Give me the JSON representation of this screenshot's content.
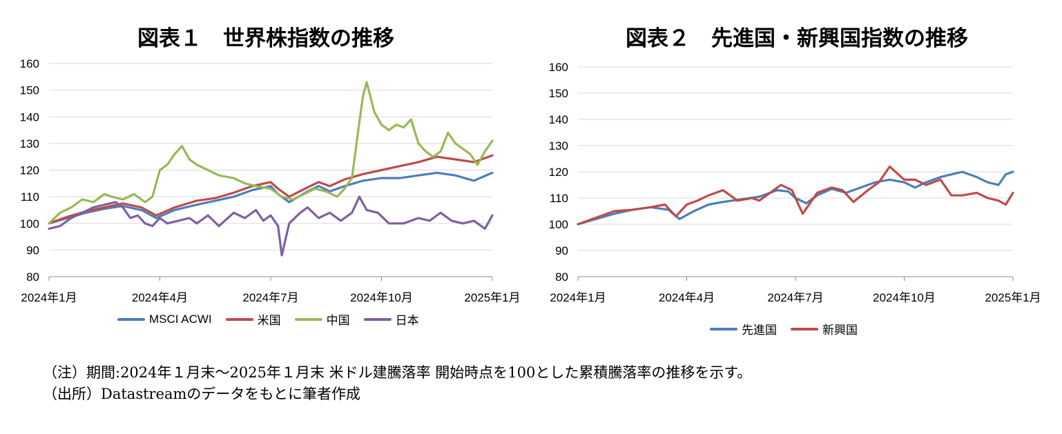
{
  "footnote_note": "（注）期間:2024年１月末〜2025年１月末 米ドル建騰落率 開始時点を100とした累積騰落率の推移を示す。",
  "footnote_source": "（出所）Datastreamのデータをもとに筆者作成",
  "chart_data": [
    {
      "type": "line",
      "title": "図表１　世界株指数の推移",
      "ylim": [
        80,
        160
      ],
      "yticks": [
        "80",
        "90",
        "100",
        "110",
        "120",
        "130",
        "140",
        "150",
        "160"
      ],
      "xlim": [
        0,
        12
      ],
      "xticks": [
        {
          "x": 0,
          "label": "2024年1月"
        },
        {
          "x": 3,
          "label": "2024年4月"
        },
        {
          "x": 6,
          "label": "2024年7月"
        },
        {
          "x": 9,
          "label": "2024年10月"
        },
        {
          "x": 12,
          "label": "2025年1月"
        }
      ],
      "grid": true,
      "legend": "bottom",
      "series": [
        {
          "name": "MSCI ACWI",
          "color": "#4a7ebb",
          "x": [
            0,
            0.5,
            1,
            1.5,
            2,
            2.5,
            2.9,
            3.4,
            4,
            4.5,
            5,
            5.5,
            6,
            6.2,
            6.5,
            7,
            7.3,
            7.6,
            8,
            8.5,
            9,
            9.5,
            10,
            10.5,
            11,
            11.5,
            12
          ],
          "y": [
            100,
            102,
            104,
            105.5,
            106.5,
            105,
            102,
            105,
            107,
            108.5,
            110,
            112.5,
            114,
            111,
            108,
            112,
            114,
            112,
            114,
            116,
            117,
            117,
            118,
            119,
            118,
            116,
            119
          ]
        },
        {
          "name": "米国",
          "color": "#be4b48",
          "x": [
            0,
            0.5,
            1,
            1.5,
            2,
            2.5,
            2.9,
            3.4,
            4,
            4.5,
            5,
            5.5,
            6,
            6.2,
            6.5,
            7,
            7.3,
            7.6,
            8,
            8.5,
            9,
            9.5,
            10,
            10.5,
            11,
            11.5,
            12
          ],
          "y": [
            100,
            102.5,
            104.5,
            106,
            107.5,
            106,
            103,
            106,
            108.5,
            109.5,
            111.5,
            114,
            115.5,
            113,
            110,
            113.5,
            115.5,
            114,
            116.5,
            118.5,
            120,
            121.5,
            123,
            125,
            124,
            123,
            125.5
          ]
        },
        {
          "name": "中国",
          "color": "#98b954",
          "x": [
            0,
            0.3,
            0.6,
            0.9,
            1.2,
            1.5,
            1.7,
            2,
            2.3,
            2.6,
            2.8,
            3,
            3.2,
            3.4,
            3.6,
            3.8,
            4,
            4.3,
            4.6,
            5,
            5.3,
            5.6,
            6,
            6.3,
            6.6,
            6.9,
            7.2,
            7.5,
            7.8,
            8,
            8.2,
            8.4,
            8.5,
            8.6,
            8.8,
            9,
            9.2,
            9.4,
            9.6,
            9.8,
            10,
            10.2,
            10.4,
            10.6,
            10.8,
            11,
            11.2,
            11.4,
            11.6,
            11.8,
            12
          ],
          "y": [
            100,
            104,
            106,
            109,
            108,
            111,
            110,
            109,
            111,
            108,
            110,
            120,
            122,
            126,
            129,
            124,
            122,
            120,
            118,
            117,
            115,
            114,
            113,
            110,
            109,
            111,
            113,
            112,
            110,
            113,
            117,
            138,
            148,
            153,
            142,
            137,
            135,
            137,
            136,
            139,
            130,
            127,
            125,
            127,
            134,
            130,
            128,
            126,
            122,
            127,
            131
          ]
        },
        {
          "name": "日本",
          "color": "#7d60a0",
          "x": [
            0,
            0.3,
            0.6,
            0.9,
            1.2,
            1.5,
            1.8,
            2,
            2.2,
            2.4,
            2.6,
            2.8,
            3,
            3.2,
            3.5,
            3.8,
            4,
            4.3,
            4.6,
            5,
            5.3,
            5.6,
            5.8,
            6,
            6.1,
            6.2,
            6.3,
            6.5,
            6.8,
            7,
            7.3,
            7.6,
            7.9,
            8.2,
            8.4,
            8.6,
            8.9,
            9.2,
            9.6,
            10,
            10.3,
            10.6,
            10.9,
            11.2,
            11.5,
            11.8,
            12
          ],
          "y": [
            98,
            99,
            102,
            104,
            106,
            107,
            108,
            106,
            102,
            103,
            100,
            99,
            102,
            100,
            101,
            102,
            100,
            103,
            99,
            104,
            102,
            105,
            101,
            103,
            101,
            99,
            88,
            100,
            104,
            106,
            102,
            104,
            101,
            104,
            110,
            105,
            104,
            100,
            100,
            102,
            101,
            104,
            101,
            100,
            101,
            98,
            103
          ]
        }
      ]
    },
    {
      "type": "line",
      "title": "図表２　先進国・新興国指数の推移",
      "ylim": [
        80,
        160
      ],
      "yticks": [
        "80",
        "90",
        "100",
        "110",
        "120",
        "130",
        "140",
        "150",
        "160"
      ],
      "xlim": [
        0,
        12
      ],
      "xticks": [
        {
          "x": 0,
          "label": "2024年1月"
        },
        {
          "x": 3,
          "label": "2024年4月"
        },
        {
          "x": 6,
          "label": "2024年7月"
        },
        {
          "x": 9,
          "label": "2024年10月"
        },
        {
          "x": 12,
          "label": "2025年1月"
        }
      ],
      "grid": true,
      "legend": "bottom",
      "series": [
        {
          "name": "先進国",
          "color": "#4a7ebb",
          "x": [
            0,
            0.5,
            1,
            1.5,
            2,
            2.5,
            2.8,
            3.2,
            3.6,
            4,
            4.5,
            5,
            5.5,
            5.8,
            6,
            6.3,
            6.6,
            7,
            7.4,
            7.8,
            8.2,
            8.6,
            9,
            9.3,
            9.6,
            10,
            10.3,
            10.6,
            11,
            11.3,
            11.6,
            11.8,
            12
          ],
          "y": [
            100,
            102,
            104,
            105.5,
            106.5,
            105.5,
            102,
            105,
            107.5,
            108.5,
            109.5,
            110.5,
            113,
            112.5,
            110,
            108,
            111,
            113.5,
            112,
            114,
            116,
            117,
            116,
            114,
            116,
            118,
            119,
            120,
            118,
            116,
            115,
            119,
            120
          ]
        },
        {
          "name": "新興国",
          "color": "#be4b48",
          "x": [
            0,
            0.5,
            1,
            1.5,
            2,
            2.4,
            2.7,
            3,
            3.3,
            3.6,
            4,
            4.4,
            4.8,
            5,
            5.3,
            5.6,
            5.9,
            6.2,
            6.6,
            7,
            7.3,
            7.6,
            8,
            8.3,
            8.6,
            9,
            9.3,
            9.6,
            10,
            10.3,
            10.6,
            11,
            11.3,
            11.6,
            11.8,
            12
          ],
          "y": [
            100,
            102.5,
            105,
            105.5,
            106.5,
            107.5,
            103,
            107.5,
            109,
            111,
            113,
            109,
            110,
            109,
            112,
            115,
            113,
            104,
            112,
            114,
            113,
            108.5,
            113,
            116,
            122,
            117,
            117,
            115,
            117,
            111,
            111,
            112,
            110,
            109,
            107.5,
            112
          ]
        }
      ]
    }
  ]
}
